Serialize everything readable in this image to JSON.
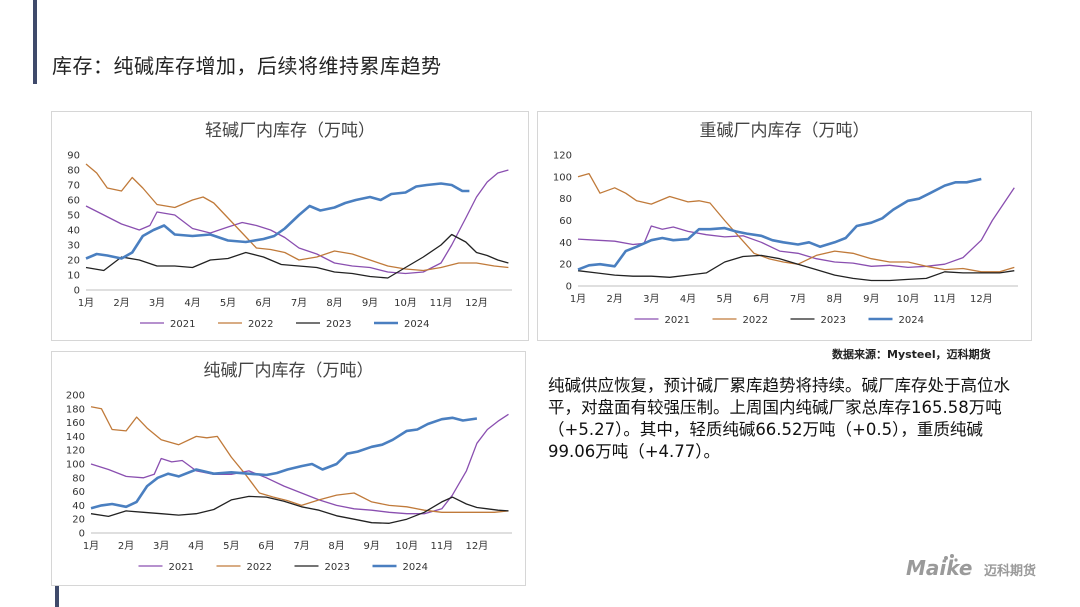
{
  "page": {
    "title": "库存：纯碱库存增加，后续将维持累库趋势",
    "source_note": "数据来源：Mysteel，迈科期货",
    "commentary": "纯碱供应恢复，预计碱厂累库趋势将持续。碱厂库存处于高位水平，对盘面有较强压制。上周国内纯碱厂家总库存165.58万吨（+5.27）。其中，轻质纯碱66.52万吨（+0.5），重质纯碱99.06万吨（+4.77）。",
    "logo": {
      "brand": "Maike",
      "cn": "迈科期货"
    }
  },
  "colors": {
    "2021": "#8a4fb0",
    "2022": "#c07a3a",
    "2023": "#222222",
    "2024": "#4a7fc0"
  },
  "chart_data": [
    {
      "id": "light",
      "type": "line",
      "title": "轻碱厂内库存（万吨）",
      "categories": [
        "1月",
        "2月",
        "3月",
        "4月",
        "5月",
        "6月",
        "7月",
        "8月",
        "9月",
        "10月",
        "11月",
        "12月"
      ],
      "yticks": [
        0,
        10,
        20,
        30,
        40,
        50,
        60,
        70,
        80,
        90
      ],
      "ylim": [
        0,
        90
      ],
      "xlim": [
        1,
        13
      ],
      "legend": "bottom",
      "series": [
        {
          "name": "2021",
          "x": [
            1,
            1.5,
            2,
            2.5,
            2.8,
            3,
            3.5,
            4,
            4.5,
            5,
            5.4,
            5.8,
            6.2,
            6.6,
            7,
            7.5,
            8,
            8.5,
            9,
            9.5,
            10,
            10.5,
            11,
            11.3,
            11.7,
            12,
            12.3,
            12.6,
            12.9
          ],
          "values": [
            56,
            50,
            44,
            40,
            43,
            52,
            50,
            41,
            38,
            42,
            45,
            43,
            40,
            35,
            28,
            24,
            18,
            16,
            15,
            12,
            11,
            12,
            18,
            30,
            48,
            62,
            72,
            78,
            80
          ]
        },
        {
          "name": "2022",
          "x": [
            1,
            1.3,
            1.6,
            2,
            2.3,
            2.6,
            3,
            3.5,
            4,
            4.3,
            4.6,
            5,
            5.4,
            5.8,
            6.2,
            6.6,
            7,
            7.5,
            8,
            8.5,
            9,
            9.5,
            10,
            10.5,
            11,
            11.5,
            12,
            12.5,
            12.9
          ],
          "values": [
            84,
            78,
            68,
            66,
            75,
            68,
            57,
            55,
            60,
            62,
            58,
            48,
            38,
            28,
            27,
            25,
            20,
            22,
            26,
            24,
            20,
            16,
            14,
            13,
            15,
            18,
            18,
            16,
            15
          ]
        },
        {
          "name": "2023",
          "x": [
            1,
            1.5,
            2,
            2.5,
            3,
            3.5,
            4,
            4.5,
            5,
            5.5,
            6,
            6.5,
            7,
            7.5,
            8,
            8.5,
            9,
            9.5,
            10,
            10.5,
            11,
            11.3,
            11.7,
            12,
            12.3,
            12.6,
            12.9
          ],
          "values": [
            15,
            13,
            22,
            20,
            16,
            16,
            15,
            20,
            21,
            25,
            22,
            17,
            16,
            15,
            12,
            11,
            9,
            8,
            15,
            22,
            30,
            37,
            32,
            25,
            23,
            20,
            18
          ]
        },
        {
          "name": "2024",
          "x": [
            1,
            1.3,
            1.6,
            2,
            2.3,
            2.6,
            2.9,
            3.2,
            3.5,
            4,
            4.5,
            5,
            5.5,
            6,
            6.3,
            6.6,
            7,
            7.3,
            7.6,
            8,
            8.3,
            8.6,
            9,
            9.3,
            9.6,
            10,
            10.3,
            10.6,
            11,
            11.3,
            11.6,
            11.8
          ],
          "values": [
            21,
            24,
            23,
            21,
            25,
            36,
            40,
            43,
            37,
            36,
            37,
            33,
            32,
            34,
            36,
            41,
            50,
            56,
            53,
            55,
            58,
            60,
            62,
            60,
            64,
            65,
            69,
            70,
            71,
            70,
            66,
            66
          ]
        }
      ]
    },
    {
      "id": "heavy",
      "type": "line",
      "title": "重碱厂内库存（万吨）",
      "categories": [
        "1月",
        "2月",
        "3月",
        "4月",
        "5月",
        "6月",
        "7月",
        "8月",
        "9月",
        "10月",
        "11月",
        "12月"
      ],
      "yticks": [
        0,
        20,
        40,
        60,
        80,
        100,
        120
      ],
      "ylim": [
        0,
        120
      ],
      "xlim": [
        1,
        13
      ],
      "legend": "bottom",
      "series": [
        {
          "name": "2021",
          "x": [
            1,
            1.5,
            2,
            2.5,
            2.8,
            3,
            3.3,
            3.6,
            4,
            4.5,
            5,
            5.5,
            6,
            6.5,
            7,
            7.5,
            8,
            8.5,
            9,
            9.5,
            10,
            10.5,
            11,
            11.5,
            12,
            12.3,
            12.6,
            12.9
          ],
          "values": [
            43,
            42,
            41,
            38,
            39,
            55,
            52,
            54,
            50,
            47,
            45,
            46,
            40,
            32,
            30,
            25,
            22,
            21,
            18,
            19,
            17,
            18,
            20,
            26,
            42,
            60,
            75,
            90
          ]
        },
        {
          "name": "2022",
          "x": [
            1,
            1.3,
            1.6,
            2,
            2.3,
            2.6,
            3,
            3.5,
            4,
            4.3,
            4.6,
            5,
            5.4,
            5.8,
            6.2,
            6.6,
            7,
            7.5,
            8,
            8.5,
            9,
            9.5,
            10,
            10.5,
            11,
            11.5,
            12,
            12.5,
            12.9
          ],
          "values": [
            100,
            103,
            85,
            90,
            85,
            78,
            75,
            82,
            77,
            78,
            76,
            60,
            45,
            30,
            25,
            22,
            20,
            28,
            32,
            30,
            25,
            22,
            22,
            18,
            15,
            16,
            13,
            13,
            17
          ]
        },
        {
          "name": "2023",
          "x": [
            1,
            1.5,
            2,
            2.5,
            3,
            3.5,
            4,
            4.5,
            5,
            5.5,
            6,
            6.5,
            7,
            7.5,
            8,
            8.5,
            9,
            9.5,
            10,
            10.5,
            11,
            11.5,
            12,
            12.5,
            12.9
          ],
          "values": [
            14,
            12,
            10,
            9,
            9,
            8,
            10,
            12,
            22,
            27,
            28,
            25,
            20,
            15,
            10,
            7,
            5,
            5,
            6,
            7,
            13,
            12,
            12,
            12,
            14
          ]
        },
        {
          "name": "2024",
          "x": [
            1,
            1.3,
            1.6,
            2,
            2.3,
            2.6,
            3,
            3.3,
            3.6,
            4,
            4.3,
            4.6,
            5,
            5.3,
            5.6,
            6,
            6.3,
            6.6,
            7,
            7.3,
            7.6,
            8,
            8.3,
            8.6,
            9,
            9.3,
            9.6,
            10,
            10.3,
            10.6,
            11,
            11.3,
            11.6,
            12
          ],
          "values": [
            15,
            19,
            20,
            18,
            32,
            36,
            42,
            44,
            42,
            43,
            52,
            52,
            53,
            50,
            48,
            46,
            42,
            40,
            38,
            40,
            36,
            40,
            44,
            55,
            58,
            62,
            70,
            78,
            80,
            85,
            92,
            95,
            95,
            98
          ]
        }
      ]
    },
    {
      "id": "total",
      "type": "line",
      "title": "纯碱厂内库存（万吨）",
      "categories": [
        "1月",
        "2月",
        "3月",
        "4月",
        "5月",
        "6月",
        "7月",
        "8月",
        "9月",
        "10月",
        "11月",
        "12月"
      ],
      "yticks": [
        0,
        20,
        40,
        60,
        80,
        100,
        120,
        140,
        160,
        180,
        200
      ],
      "ylim": [
        0,
        200
      ],
      "xlim": [
        1,
        13
      ],
      "legend": "bottom",
      "series": [
        {
          "name": "2021",
          "x": [
            1,
            1.5,
            2,
            2.5,
            2.8,
            3,
            3.3,
            3.6,
            4,
            4.5,
            5,
            5.5,
            6,
            6.5,
            7,
            7.5,
            8,
            8.5,
            9,
            9.5,
            10,
            10.5,
            11,
            11.3,
            11.7,
            12,
            12.3,
            12.6,
            12.9
          ],
          "values": [
            100,
            92,
            82,
            80,
            85,
            108,
            103,
            105,
            90,
            85,
            85,
            90,
            80,
            68,
            58,
            48,
            40,
            35,
            33,
            30,
            28,
            28,
            35,
            55,
            90,
            130,
            150,
            162,
            172
          ]
        },
        {
          "name": "2022",
          "x": [
            1,
            1.3,
            1.6,
            2,
            2.3,
            2.6,
            3,
            3.5,
            4,
            4.3,
            4.6,
            5,
            5.4,
            5.8,
            6.2,
            6.6,
            7,
            7.5,
            8,
            8.5,
            9,
            9.5,
            10,
            10.5,
            11,
            11.5,
            12,
            12.5,
            12.9
          ],
          "values": [
            183,
            180,
            150,
            148,
            168,
            152,
            135,
            128,
            140,
            138,
            140,
            110,
            85,
            58,
            52,
            47,
            40,
            48,
            55,
            58,
            45,
            40,
            38,
            33,
            30,
            30,
            30,
            30,
            32
          ]
        },
        {
          "name": "2023",
          "x": [
            1,
            1.5,
            2,
            2.5,
            3,
            3.5,
            4,
            4.5,
            5,
            5.5,
            6,
            6.5,
            7,
            7.5,
            8,
            8.5,
            9,
            9.5,
            10,
            10.5,
            11,
            11.3,
            11.7,
            12,
            12.3,
            12.6,
            12.9
          ],
          "values": [
            28,
            24,
            32,
            30,
            28,
            26,
            28,
            34,
            48,
            53,
            52,
            46,
            38,
            33,
            25,
            20,
            15,
            14,
            20,
            30,
            45,
            52,
            42,
            37,
            35,
            33,
            32
          ]
        },
        {
          "name": "2024",
          "x": [
            1,
            1.3,
            1.6,
            2,
            2.3,
            2.6,
            2.9,
            3.2,
            3.5,
            4,
            4.5,
            5,
            5.5,
            6,
            6.3,
            6.6,
            7,
            7.3,
            7.6,
            8,
            8.3,
            8.6,
            9,
            9.3,
            9.6,
            10,
            10.3,
            10.6,
            11,
            11.3,
            11.6,
            12
          ],
          "values": [
            36,
            40,
            42,
            38,
            45,
            68,
            80,
            86,
            82,
            92,
            86,
            88,
            86,
            84,
            87,
            92,
            97,
            100,
            92,
            100,
            115,
            118,
            125,
            128,
            135,
            148,
            150,
            158,
            165,
            167,
            163,
            166
          ]
        }
      ]
    }
  ]
}
